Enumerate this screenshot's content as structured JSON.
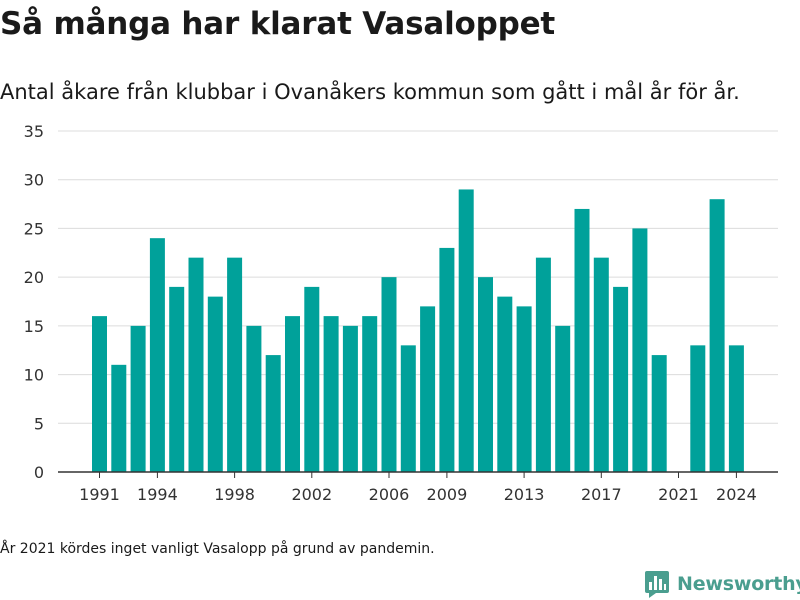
{
  "title": "Så många har klarat Vasaloppet",
  "subtitle": "Antal åkare från klubbar i Ovanåkers kommun som gått i mål år för år.",
  "note": "År 2021 kördes inget vanligt Vasalopp på grund av pandemin.",
  "brand": {
    "name": "Newsworthy",
    "color": "#4a9e8f"
  },
  "colors": {
    "bar": "#00a19a",
    "grid": "#dcdcdc",
    "axis": "#333333",
    "text": "#333333"
  },
  "chart_data": {
    "type": "bar",
    "title": "Så många har klarat Vasaloppet",
    "xlabel": "",
    "ylabel": "",
    "x": [
      1991,
      1992,
      1993,
      1994,
      1995,
      1996,
      1997,
      1998,
      1999,
      2000,
      2001,
      2002,
      2003,
      2004,
      2005,
      2006,
      2007,
      2008,
      2009,
      2010,
      2011,
      2012,
      2013,
      2014,
      2015,
      2016,
      2017,
      2018,
      2019,
      2020,
      2021,
      2022,
      2023,
      2024
    ],
    "values": [
      16,
      11,
      15,
      24,
      19,
      22,
      18,
      22,
      15,
      12,
      16,
      19,
      16,
      15,
      16,
      20,
      13,
      17,
      23,
      29,
      20,
      18,
      17,
      22,
      15,
      27,
      22,
      19,
      25,
      12,
      null,
      13,
      28,
      13
    ],
    "x_ticks": [
      1991,
      1994,
      1998,
      2002,
      2006,
      2009,
      2013,
      2017,
      2021,
      2024
    ],
    "y_ticks": [
      0,
      5,
      10,
      15,
      20,
      25,
      30,
      35
    ],
    "ylim": [
      0,
      35
    ],
    "grid": true,
    "legend": "none"
  }
}
